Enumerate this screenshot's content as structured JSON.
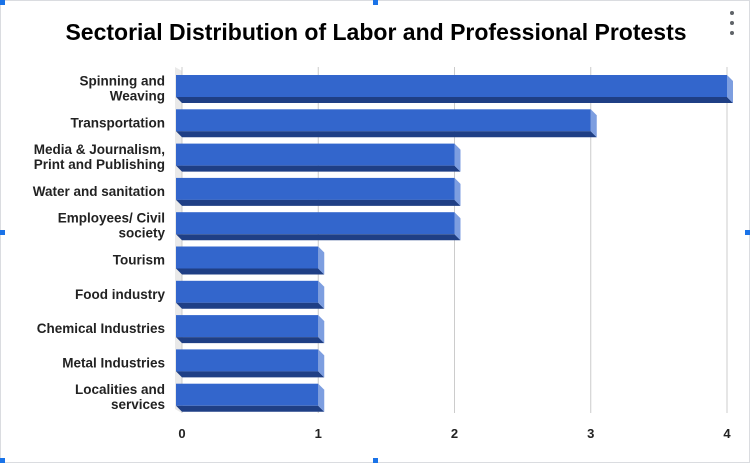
{
  "chart_data": {
    "type": "bar",
    "orientation": "horizontal",
    "title": "Sectorial Distribution of Labor and Professional Protests",
    "categories": [
      [
        "Spinning and",
        "Weaving"
      ],
      [
        "Transportation"
      ],
      [
        "Media & Journalism,",
        "Print and Publishing"
      ],
      [
        "Water and sanitation"
      ],
      [
        "Employees/ Civil",
        "society"
      ],
      [
        "Tourism"
      ],
      [
        "Food industry"
      ],
      [
        "Chemical Industries"
      ],
      [
        "Metal Industries"
      ],
      [
        "Localities and",
        "services"
      ]
    ],
    "values": [
      4,
      3,
      2,
      2,
      2,
      1,
      1,
      1,
      1,
      1
    ],
    "xlim": [
      0,
      4
    ],
    "xticks": [
      "0",
      "1",
      "2",
      "3",
      "4"
    ],
    "grid": "vertical",
    "legend": "none",
    "colors": {
      "bar_face": "#3366cc",
      "bar_end": "#7d9ee0",
      "bar_shadow": "#1f3f85",
      "gridline": "#cccccc",
      "wall": "#e9e9e9"
    }
  }
}
